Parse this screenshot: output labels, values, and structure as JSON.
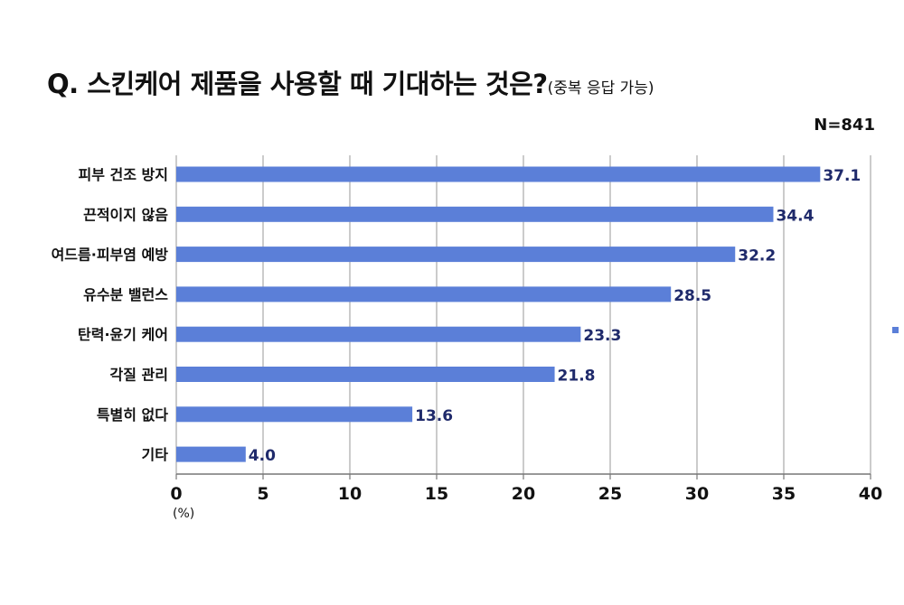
{
  "title": {
    "main": "Q. 스킨케어 제품을 사용할 때 기대하는 것은?",
    "sub": "(중복 응답 가능)"
  },
  "sample_size": "N=841",
  "chart_data": {
    "type": "bar",
    "orientation": "horizontal",
    "categories": [
      "피부 건조 방지",
      "끈적이지 않음",
      "여드름·피부염 예방",
      "유수분 밸런스",
      "탄력·윤기 케어",
      "각질 관리",
      "특별히 없다",
      "기타"
    ],
    "values": [
      37.1,
      34.4,
      32.2,
      28.5,
      23.3,
      21.8,
      13.6,
      4.0
    ],
    "value_labels": [
      "37.1",
      "34.4",
      "32.2",
      "28.5",
      "23.3",
      "21.8",
      "13.6",
      "4.0"
    ],
    "xlim": [
      0,
      40
    ],
    "ticks": [
      "0",
      "5",
      "10",
      "15",
      "20",
      "25",
      "30",
      "35",
      "40"
    ],
    "tick_values": [
      0,
      5,
      10,
      15,
      20,
      25,
      30,
      35,
      40
    ],
    "unit_label": "(%)",
    "grid": true,
    "legend": "right",
    "bar_color": "#5b7fd8",
    "value_label_color": "#1f2a6b"
  }
}
